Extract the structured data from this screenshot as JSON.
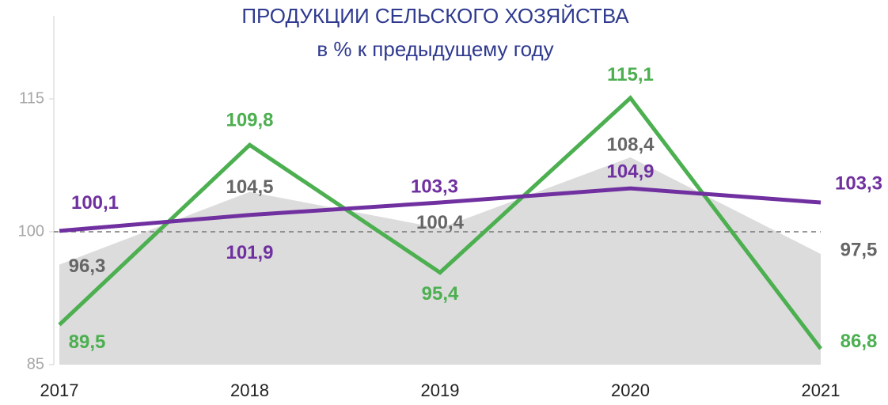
{
  "chart_data": {
    "type": "line",
    "title": "ПРОДУКЦИИ СЕЛЬСКОГО ХОЗЯЙСТВА",
    "subtitle": "в % к предыдущему году",
    "categories": [
      "2017",
      "2018",
      "2019",
      "2020",
      "2021"
    ],
    "series": [
      {
        "color": "#dcdcdc",
        "label_color": "#666666",
        "fill": "area",
        "values": [
          96.3,
          104.5,
          100.4,
          108.4,
          97.5
        ],
        "value_labels": [
          "96,3",
          "104,5",
          "100,4",
          "108,4",
          "97,5"
        ]
      },
      {
        "color": "#4caf50",
        "values": [
          89.5,
          109.8,
          95.4,
          115.1,
          86.8
        ],
        "value_labels": [
          "89,5",
          "109,8",
          "95,4",
          "115,1",
          "86,8"
        ]
      },
      {
        "color": "#7030a0",
        "values": [
          100.1,
          101.9,
          103.3,
          104.9,
          103.3
        ],
        "value_labels": [
          "100,1",
          "101,9",
          "103,3",
          "104,9",
          "103,3"
        ]
      }
    ],
    "reference_line": 100,
    "ylim": [
      85,
      125
    ],
    "yticks": [
      85,
      100,
      115
    ]
  }
}
